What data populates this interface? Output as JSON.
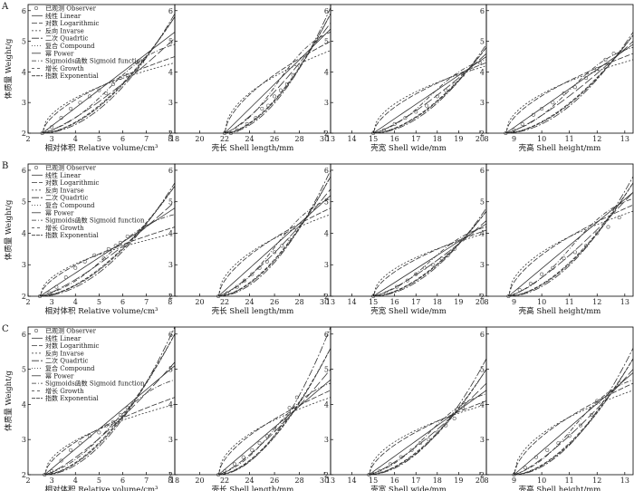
{
  "figure": {
    "y_axis_label": "体质量 Weight/g",
    "rows": [
      {
        "label": "A",
        "show_legend": true,
        "dotted_legend_line": false
      },
      {
        "label": "B",
        "show_legend": true,
        "dotted_legend_line": true
      },
      {
        "label": "C",
        "show_legend": true,
        "dotted_legend_line": false
      }
    ]
  },
  "legend": {
    "entries": [
      {
        "key": "observed",
        "label": "已观测 Observer"
      },
      {
        "key": "linear",
        "label": "线性 Linear"
      },
      {
        "key": "log",
        "label": "对数 Logarithmic"
      },
      {
        "key": "inverse",
        "label": "反向 Invarse"
      },
      {
        "key": "quadratic",
        "label": "二次 Quadrtic"
      },
      {
        "key": "compound",
        "label": "复合 Compound"
      },
      {
        "key": "power",
        "label": "幂 Power"
      },
      {
        "key": "sigmoid",
        "label": "Sigmoids函数 Sigmoid function"
      },
      {
        "key": "growth",
        "label": "增长 Growth"
      },
      {
        "key": "exponential",
        "label": "指数 Exponential"
      }
    ]
  },
  "styles": {
    "line_color": "#333333",
    "marker_color": "#555555"
  },
  "chart_data": [
    {
      "type": "scatter",
      "row": "A",
      "xlabel": "相对体积 Relative volume/cm³",
      "ylabel": "体质量 Weight/g",
      "xlim": [
        2,
        8.2
      ],
      "ylim": [
        2,
        6.2
      ],
      "x_ticks": [
        2,
        3,
        4,
        5,
        6,
        7,
        8
      ],
      "y_ticks": [
        2,
        3,
        4,
        5,
        6
      ],
      "observed_points": [
        [
          2.6,
          2.0
        ],
        [
          2.8,
          2.05
        ],
        [
          3.0,
          2.2
        ],
        [
          3.4,
          2.5
        ],
        [
          3.8,
          2.8
        ],
        [
          4.2,
          3.0
        ],
        [
          4.6,
          3.2
        ],
        [
          5.0,
          3.4
        ],
        [
          5.3,
          3.3
        ],
        [
          5.6,
          3.6
        ],
        [
          5.9,
          3.8
        ],
        [
          6.2,
          3.9
        ],
        [
          6.6,
          4.3
        ]
      ],
      "model_y_at_xlim_max": {
        "linear": 5.3,
        "log": 4.5,
        "inverse": 4.3,
        "quadratic": 5.9,
        "compound": 5.8,
        "power": 5.1,
        "sigmoid": 4.9,
        "growth": 5.8,
        "exponential": 5.8
      }
    },
    {
      "type": "scatter",
      "row": "A",
      "xlabel": "壳长 Shell length/mm",
      "ylabel": "体质量 Weight/g",
      "xlim": [
        18,
        30.5
      ],
      "ylim": [
        2,
        6.2
      ],
      "x_ticks": [
        18,
        20,
        22,
        24,
        26,
        28,
        30
      ],
      "y_ticks": [
        2,
        3,
        4,
        5,
        6
      ],
      "observed_points": [
        [
          22.0,
          2.0
        ],
        [
          22.5,
          2.0
        ],
        [
          23.0,
          2.1
        ],
        [
          23.8,
          2.3
        ],
        [
          24.5,
          2.5
        ],
        [
          25.0,
          2.8
        ],
        [
          25.5,
          2.9
        ],
        [
          26.0,
          3.2
        ],
        [
          26.5,
          3.4
        ],
        [
          27.0,
          3.6
        ],
        [
          27.5,
          3.9
        ],
        [
          28.0,
          4.2
        ]
      ],
      "model_y_at_xlim_max": {
        "linear": 5.4,
        "log": 5.0,
        "inverse": 4.7,
        "quadratic": 6.1,
        "compound": 5.9,
        "power": 5.6,
        "sigmoid": 5.3,
        "growth": 5.9,
        "exponential": 5.9
      }
    },
    {
      "type": "scatter",
      "row": "A",
      "xlabel": "壳宽 Shell wide/mm",
      "ylabel": "体质量 Weight/g",
      "xlim": [
        13,
        20.3
      ],
      "ylim": [
        2,
        6.2
      ],
      "x_ticks": [
        13,
        14,
        15,
        16,
        17,
        18,
        19,
        20
      ],
      "y_ticks": [
        2,
        3,
        4,
        5,
        6
      ],
      "observed_points": [
        [
          15.0,
          2.0
        ],
        [
          15.5,
          2.1
        ],
        [
          16.0,
          2.3
        ],
        [
          16.5,
          2.5
        ],
        [
          17.0,
          2.7
        ],
        [
          17.5,
          2.9
        ],
        [
          18.0,
          3.2
        ],
        [
          18.4,
          3.4
        ],
        [
          18.8,
          3.6
        ],
        [
          19.2,
          3.9
        ],
        [
          19.6,
          4.1
        ],
        [
          20.0,
          4.3
        ]
      ],
      "model_y_at_xlim_max": {
        "linear": 4.5,
        "log": 4.3,
        "inverse": 4.2,
        "quadratic": 4.9,
        "compound": 4.8,
        "power": 4.6,
        "sigmoid": 4.4,
        "growth": 4.8,
        "exponential": 4.8
      }
    },
    {
      "type": "scatter",
      "row": "A",
      "xlabel": "壳高 Shell height/mm",
      "ylabel": "体质量 Weight/g",
      "xlim": [
        8,
        13.3
      ],
      "ylim": [
        2,
        6.2
      ],
      "x_ticks": [
        8,
        9,
        10,
        11,
        12,
        13
      ],
      "y_ticks": [
        2,
        3,
        4,
        5,
        6
      ],
      "observed_points": [
        [
          8.7,
          2.0
        ],
        [
          9.0,
          2.1
        ],
        [
          9.3,
          2.3
        ],
        [
          9.7,
          2.6
        ],
        [
          10.0,
          2.8
        ],
        [
          10.4,
          3.0
        ],
        [
          10.8,
          3.3
        ],
        [
          11.2,
          3.5
        ],
        [
          11.6,
          3.8
        ],
        [
          12.0,
          4.1
        ],
        [
          12.3,
          4.4
        ],
        [
          12.6,
          4.6
        ]
      ],
      "model_y_at_xlim_max": {
        "linear": 4.9,
        "log": 4.6,
        "inverse": 4.4,
        "quadratic": 5.3,
        "compound": 5.2,
        "power": 5.0,
        "sigmoid": 4.8,
        "growth": 5.2,
        "exponential": 5.2
      }
    },
    {
      "type": "scatter",
      "row": "B",
      "xlabel": "相对体积 Relative volume/cm³",
      "ylabel": "体质量 Weight/g",
      "xlim": [
        2,
        8.2
      ],
      "ylim": [
        2,
        6.2
      ],
      "x_ticks": [
        2,
        3,
        4,
        5,
        6,
        7,
        8
      ],
      "y_ticks": [
        2,
        3,
        4,
        5,
        6
      ],
      "observed_points": [
        [
          2.5,
          2.0
        ],
        [
          2.9,
          2.1
        ],
        [
          3.2,
          2.3
        ],
        [
          3.6,
          2.6
        ],
        [
          4.0,
          2.9
        ],
        [
          4.4,
          3.1
        ],
        [
          4.8,
          3.3
        ],
        [
          5.2,
          3.2
        ],
        [
          5.4,
          3.5
        ],
        [
          5.7,
          3.6
        ],
        [
          5.9,
          3.7
        ],
        [
          6.2,
          3.9
        ]
      ],
      "model_y_at_xlim_max": {
        "linear": 4.8,
        "log": 4.2,
        "inverse": 4.0,
        "quadratic": 5.6,
        "compound": 5.5,
        "power": 5.0,
        "sigmoid": 4.6,
        "growth": 5.5,
        "exponential": 5.5
      }
    },
    {
      "type": "scatter",
      "row": "B",
      "xlabel": "壳长 Shell length/mm",
      "ylabel": "体质量 Weight/g",
      "xlim": [
        18,
        30.5
      ],
      "ylim": [
        2,
        6.2
      ],
      "x_ticks": [
        20,
        22,
        24,
        26,
        28,
        30
      ],
      "y_ticks": [
        2,
        3,
        4,
        5,
        6
      ],
      "observed_points": [
        [
          21.5,
          2.0
        ],
        [
          22.2,
          2.1
        ],
        [
          23.0,
          2.3
        ],
        [
          23.6,
          2.5
        ],
        [
          24.2,
          2.7
        ],
        [
          24.8,
          2.9
        ],
        [
          25.4,
          3.1
        ],
        [
          26.0,
          3.4
        ],
        [
          26.6,
          3.6
        ],
        [
          27.2,
          3.8
        ],
        [
          27.8,
          4.1
        ]
      ],
      "model_y_at_xlim_max": {
        "linear": 5.2,
        "log": 4.8,
        "inverse": 4.6,
        "quadratic": 6.0,
        "compound": 5.8,
        "power": 5.4,
        "sigmoid": 5.1,
        "growth": 5.8,
        "exponential": 5.8
      }
    },
    {
      "type": "scatter",
      "row": "B",
      "xlabel": "壳宽 Shell wide/mm",
      "ylabel": "体质量 Weight/g",
      "xlim": [
        13,
        20.3
      ],
      "ylim": [
        2,
        6.2
      ],
      "x_ticks": [
        13,
        14,
        15,
        16,
        17,
        18,
        19,
        20
      ],
      "y_ticks": [
        2,
        3,
        4,
        5,
        6
      ],
      "observed_points": [
        [
          15.0,
          2.0
        ],
        [
          15.6,
          2.1
        ],
        [
          16.1,
          2.3
        ],
        [
          16.6,
          2.5
        ],
        [
          17.0,
          2.7
        ],
        [
          17.4,
          2.9
        ],
        [
          17.8,
          3.0
        ],
        [
          18.2,
          3.2
        ],
        [
          18.5,
          3.3
        ],
        [
          18.8,
          3.5
        ],
        [
          19.2,
          3.8
        ],
        [
          19.6,
          4.0
        ]
      ],
      "model_y_at_xlim_max": {
        "linear": 4.3,
        "log": 4.1,
        "inverse": 4.0,
        "quadratic": 4.8,
        "compound": 4.7,
        "power": 4.4,
        "sigmoid": 4.2,
        "growth": 4.7,
        "exponential": 4.7
      }
    },
    {
      "type": "scatter",
      "row": "B",
      "xlabel": "壳高 Shell height/mm",
      "ylabel": "体质量 Weight/g",
      "xlim": [
        8,
        13.3
      ],
      "ylim": [
        2,
        6.2
      ],
      "x_ticks": [
        8,
        9,
        10,
        11,
        12,
        13
      ],
      "y_ticks": [
        2,
        3,
        4,
        5,
        6
      ],
      "observed_points": [
        [
          8.8,
          2.0
        ],
        [
          9.2,
          2.2
        ],
        [
          9.6,
          2.4
        ],
        [
          10.0,
          2.7
        ],
        [
          10.4,
          2.9
        ],
        [
          10.8,
          3.2
        ],
        [
          11.2,
          3.4
        ],
        [
          11.6,
          3.6
        ],
        [
          12.0,
          4.0
        ],
        [
          12.4,
          4.2
        ],
        [
          12.8,
          4.5
        ]
      ],
      "model_y_at_xlim_max": {
        "linear": 5.3,
        "log": 4.9,
        "inverse": 4.7,
        "quadratic": 5.8,
        "compound": 5.6,
        "power": 5.3,
        "sigmoid": 5.1,
        "growth": 5.6,
        "exponential": 5.6
      }
    },
    {
      "type": "scatter",
      "row": "C",
      "xlabel": "相对体积 Relative volume/cm³",
      "ylabel": "体质量 Weight/g",
      "xlim": [
        2,
        8.2
      ],
      "ylim": [
        2,
        6.2
      ],
      "x_ticks": [
        2,
        3,
        4,
        5,
        6,
        7,
        8
      ],
      "y_ticks": [
        2,
        3,
        4,
        5,
        6
      ],
      "observed_points": [
        [
          2.7,
          2.0
        ],
        [
          3.0,
          2.1
        ],
        [
          3.4,
          2.4
        ],
        [
          3.8,
          2.7
        ],
        [
          4.2,
          2.9
        ],
        [
          4.6,
          3.1
        ],
        [
          5.0,
          3.2
        ],
        [
          5.3,
          3.4
        ],
        [
          5.6,
          3.5
        ],
        [
          5.9,
          3.7
        ],
        [
          6.2,
          3.9
        ]
      ],
      "model_y_at_xlim_max": {
        "linear": 5.1,
        "log": 4.2,
        "inverse": 4.0,
        "quadratic": 6.2,
        "compound": 6.0,
        "power": 5.2,
        "sigmoid": 4.7,
        "growth": 6.0,
        "exponential": 6.0
      }
    },
    {
      "type": "scatter",
      "row": "C",
      "xlabel": "壳长 Shell length/mm",
      "ylabel": "体质量 Weight/g",
      "xlim": [
        18,
        30.5
      ],
      "ylim": [
        2,
        6.2
      ],
      "x_ticks": [
        18,
        20,
        22,
        24,
        26,
        28,
        30
      ],
      "y_ticks": [
        2,
        3,
        4,
        5,
        6
      ],
      "observed_points": [
        [
          21.5,
          2.0
        ],
        [
          22.0,
          2.1
        ],
        [
          22.8,
          2.3
        ],
        [
          23.5,
          2.5
        ],
        [
          24.2,
          2.7
        ],
        [
          24.8,
          2.9
        ],
        [
          25.4,
          3.1
        ],
        [
          26.0,
          3.3
        ],
        [
          26.6,
          3.5
        ],
        [
          27.2,
          3.9
        ],
        [
          27.8,
          4.2
        ]
      ],
      "model_y_at_xlim_max": {
        "linear": 4.7,
        "log": 4.4,
        "inverse": 4.2,
        "quadratic": 6.2,
        "compound": 5.6,
        "power": 5.0,
        "sigmoid": 4.6,
        "growth": 5.6,
        "exponential": 5.6
      }
    },
    {
      "type": "scatter",
      "row": "C",
      "xlabel": "壳宽 Shell wide/mm",
      "ylabel": "体质量 Weight/g",
      "xlim": [
        13,
        20.3
      ],
      "ylim": [
        2,
        6.2
      ],
      "x_ticks": [
        13,
        14,
        15,
        16,
        17,
        18,
        19,
        20
      ],
      "y_ticks": [
        2,
        3,
        4,
        5,
        6
      ],
      "observed_points": [
        [
          14.8,
          2.0
        ],
        [
          15.3,
          2.1
        ],
        [
          15.8,
          2.3
        ],
        [
          16.3,
          2.5
        ],
        [
          16.8,
          2.7
        ],
        [
          17.2,
          2.9
        ],
        [
          17.6,
          3.0
        ],
        [
          18.0,
          3.2
        ],
        [
          18.4,
          3.4
        ],
        [
          18.8,
          3.6
        ],
        [
          19.2,
          3.9
        ]
      ],
      "model_y_at_xlim_max": {
        "linear": 4.4,
        "log": 4.1,
        "inverse": 4.0,
        "quadratic": 5.3,
        "compound": 5.0,
        "power": 4.6,
        "sigmoid": 4.3,
        "growth": 5.0,
        "exponential": 5.0
      }
    },
    {
      "type": "scatter",
      "row": "C",
      "xlabel": "壳高 Shell height/mm",
      "ylabel": "体质量 Weight/g",
      "xlim": [
        8,
        13.3
      ],
      "ylim": [
        2,
        6.2
      ],
      "x_ticks": [
        8,
        9,
        10,
        11,
        12,
        13
      ],
      "y_ticks": [
        2,
        3,
        4,
        5,
        6
      ],
      "observed_points": [
        [
          9.0,
          2.0
        ],
        [
          9.4,
          2.2
        ],
        [
          9.8,
          2.5
        ],
        [
          10.2,
          2.7
        ],
        [
          10.6,
          2.9
        ],
        [
          11.0,
          3.1
        ],
        [
          11.4,
          3.4
        ],
        [
          11.8,
          3.7
        ],
        [
          12.0,
          4.1
        ],
        [
          12.4,
          4.3
        ],
        [
          12.8,
          4.6
        ]
      ],
      "model_y_at_xlim_max": {
        "linear": 4.9,
        "log": 4.6,
        "inverse": 4.4,
        "quadratic": 5.6,
        "compound": 5.3,
        "power": 5.0,
        "sigmoid": 4.7,
        "growth": 5.3,
        "exponential": 5.3
      }
    }
  ]
}
